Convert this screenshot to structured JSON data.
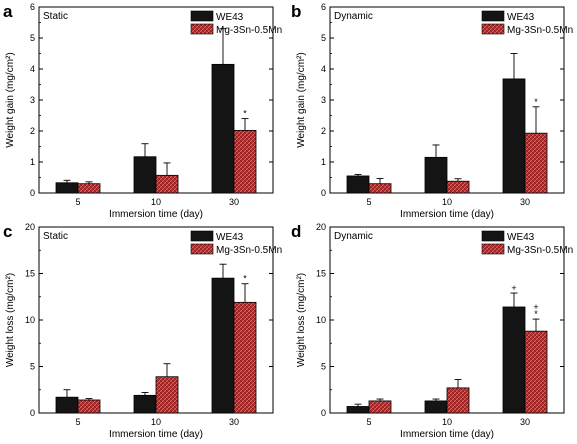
{
  "colors": {
    "series_1": "#141414",
    "series_2": "#b02a2a",
    "hatch": "#e07a7a",
    "axis": "#000000"
  },
  "chart_data": [
    {
      "panel": "a",
      "type": "bar",
      "condition": "Static",
      "categories": [
        "5",
        "10",
        "30"
      ],
      "xlabel": "Immersion time (day)",
      "ylabel": "Weight gain (mg/cm²)",
      "ylim": [
        0,
        6
      ],
      "yticks": [
        "0",
        "1",
        "2",
        "3",
        "4",
        "5",
        "6"
      ],
      "legend": "top-right",
      "series": [
        {
          "name": "WE43",
          "values": [
            0.33,
            1.17,
            4.15
          ],
          "errors": [
            0.08,
            0.42,
            1.15
          ],
          "marks": [
            "",
            "",
            ""
          ]
        },
        {
          "name": "Mg-3Sn-0.5Mn",
          "values": [
            0.3,
            0.57,
            2.02
          ],
          "errors": [
            0.06,
            0.4,
            0.38
          ],
          "marks": [
            "",
            "",
            "*"
          ]
        }
      ]
    },
    {
      "panel": "b",
      "type": "bar",
      "condition": "Dynamic",
      "categories": [
        "5",
        "10",
        "30"
      ],
      "xlabel": "Immersion time (day)",
      "ylabel": "Weight gain (mg/cm²)",
      "ylim": [
        0,
        6
      ],
      "yticks": [
        "0",
        "1",
        "2",
        "3",
        "4",
        "5",
        "6"
      ],
      "legend": "top-right",
      "series": [
        {
          "name": "WE43",
          "values": [
            0.55,
            1.15,
            3.68
          ],
          "errors": [
            0.05,
            0.4,
            0.82
          ],
          "marks": [
            "",
            "",
            ""
          ]
        },
        {
          "name": "Mg-3Sn-0.5Mn",
          "values": [
            0.3,
            0.38,
            1.93
          ],
          "errors": [
            0.17,
            0.08,
            0.85
          ],
          "marks": [
            "",
            "",
            "*"
          ]
        }
      ]
    },
    {
      "panel": "c",
      "type": "bar",
      "condition": "Static",
      "categories": [
        "5",
        "10",
        "30"
      ],
      "xlabel": "Immersion time (day)",
      "ylabel": "Weight loss (mg/cm²)",
      "ylim": [
        0,
        20
      ],
      "yticks": [
        "0",
        "5",
        "10",
        "15",
        "20"
      ],
      "legend": "top-right",
      "series": [
        {
          "name": "WE43",
          "values": [
            1.7,
            1.9,
            14.5
          ],
          "errors": [
            0.8,
            0.3,
            1.5
          ],
          "marks": [
            "",
            "",
            ""
          ]
        },
        {
          "name": "Mg-3Sn-0.5Mn",
          "values": [
            1.4,
            3.9,
            11.9
          ],
          "errors": [
            0.15,
            1.4,
            2.0
          ],
          "marks": [
            "",
            "",
            "*"
          ]
        }
      ]
    },
    {
      "panel": "d",
      "type": "bar",
      "condition": "Dynamic",
      "categories": [
        "5",
        "10",
        "30"
      ],
      "xlabel": "Immersion time (day)",
      "ylabel": "Weight loss (mg/cm²)",
      "ylim": [
        0,
        20
      ],
      "yticks": [
        "0",
        "5",
        "10",
        "15",
        "20"
      ],
      "legend": "top-right",
      "series": [
        {
          "name": "WE43",
          "values": [
            0.7,
            1.3,
            11.4
          ],
          "errors": [
            0.25,
            0.2,
            1.5
          ],
          "marks": [
            "",
            "",
            "+"
          ]
        },
        {
          "name": "Mg-3Sn-0.5Mn",
          "values": [
            1.3,
            2.7,
            8.8
          ],
          "errors": [
            0.2,
            0.9,
            1.3
          ],
          "marks": [
            "",
            "",
            "+\n*"
          ]
        }
      ]
    }
  ]
}
